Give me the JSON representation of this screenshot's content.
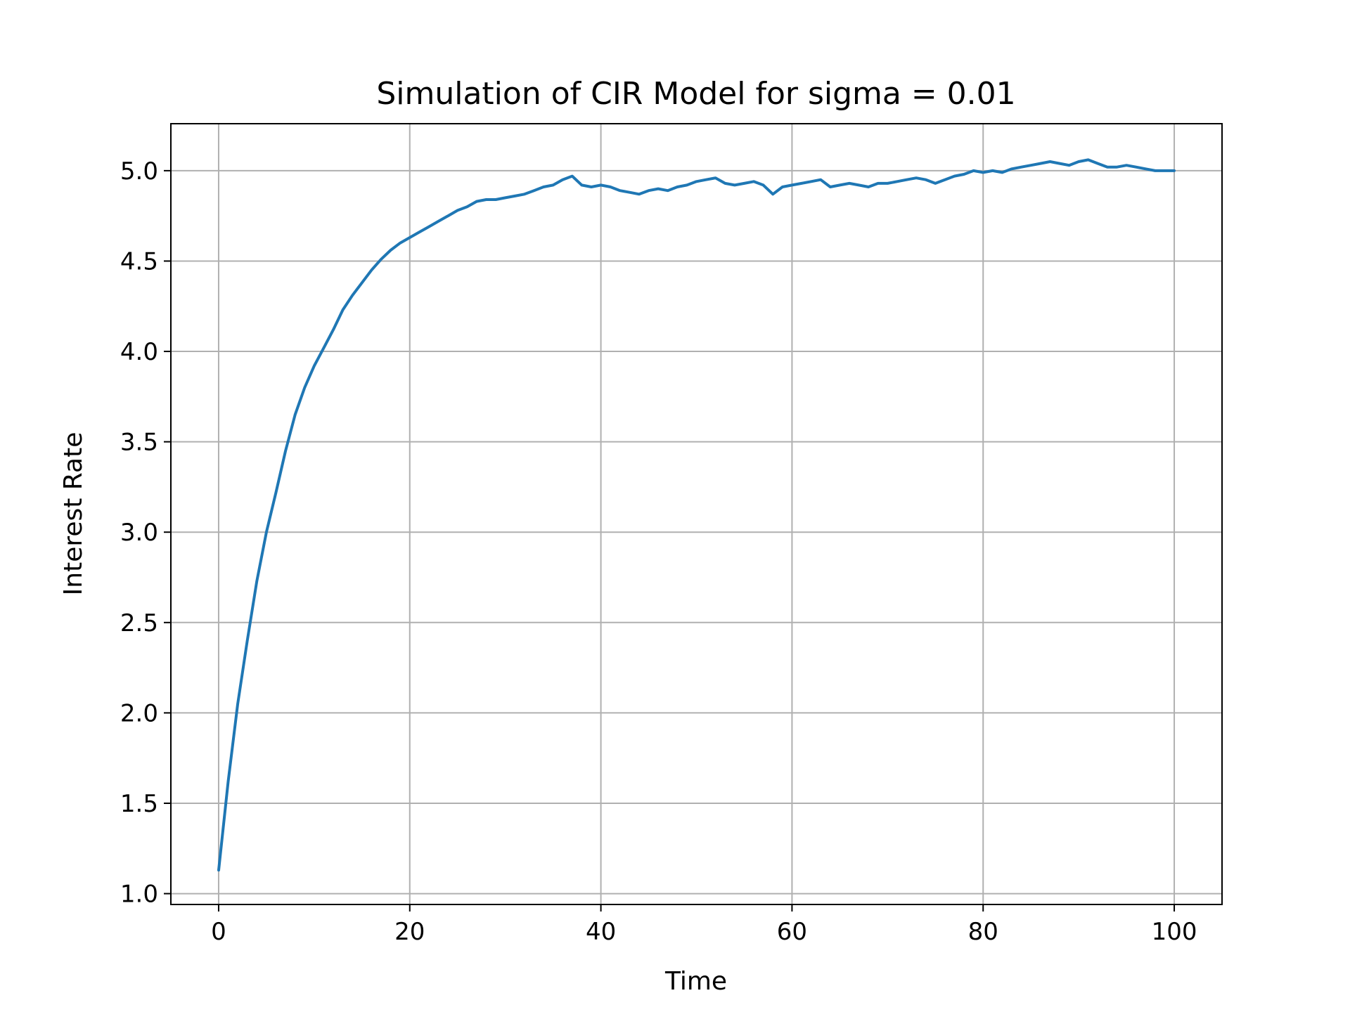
{
  "chart_data": {
    "type": "line",
    "title": "Simulation of CIR Model for sigma = 0.01",
    "xlabel": "Time",
    "ylabel": "Interest Rate",
    "xlim": [
      -5,
      105
    ],
    "ylim": [
      0.94,
      5.26
    ],
    "x_ticks": [
      0,
      20,
      40,
      60,
      80,
      100
    ],
    "y_ticks": [
      1.0,
      1.5,
      2.0,
      2.5,
      3.0,
      3.5,
      4.0,
      4.5,
      5.0
    ],
    "x_tick_labels": [
      "0",
      "20",
      "40",
      "60",
      "80",
      "100"
    ],
    "y_tick_labels": [
      "1.0",
      "1.5",
      "2.0",
      "2.5",
      "3.0",
      "3.5",
      "4.0",
      "4.5",
      "5.0"
    ],
    "grid": true,
    "line_color": "#1f77b4",
    "series": [
      {
        "x": [
          0,
          1,
          2,
          3,
          4,
          5,
          6,
          7,
          8,
          9,
          10,
          11,
          12,
          13,
          14,
          15,
          16,
          17,
          18,
          19,
          20,
          21,
          22,
          23,
          24,
          25,
          26,
          27,
          28,
          29,
          30,
          31,
          32,
          33,
          34,
          35,
          36,
          37,
          38,
          39,
          40,
          41,
          42,
          43,
          44,
          45,
          46,
          47,
          48,
          49,
          50,
          51,
          52,
          53,
          54,
          55,
          56,
          57,
          58,
          59,
          60,
          61,
          62,
          63,
          64,
          65,
          66,
          67,
          68,
          69,
          70,
          71,
          72,
          73,
          74,
          75,
          76,
          77,
          78,
          79,
          80,
          81,
          82,
          83,
          84,
          85,
          86,
          87,
          88,
          89,
          90,
          91,
          92,
          93,
          94,
          95,
          96,
          97,
          98,
          99,
          100
        ],
        "values": [
          1.13,
          1.62,
          2.05,
          2.4,
          2.73,
          3.0,
          3.22,
          3.45,
          3.65,
          3.8,
          3.92,
          4.02,
          4.12,
          4.23,
          4.31,
          4.38,
          4.45,
          4.51,
          4.56,
          4.6,
          4.63,
          4.66,
          4.69,
          4.72,
          4.75,
          4.78,
          4.8,
          4.83,
          4.84,
          4.84,
          4.85,
          4.86,
          4.87,
          4.89,
          4.91,
          4.92,
          4.95,
          4.97,
          4.92,
          4.91,
          4.92,
          4.91,
          4.89,
          4.88,
          4.87,
          4.89,
          4.9,
          4.89,
          4.91,
          4.92,
          4.94,
          4.95,
          4.96,
          4.93,
          4.92,
          4.93,
          4.94,
          4.92,
          4.87,
          4.91,
          4.92,
          4.93,
          4.94,
          4.95,
          4.91,
          4.92,
          4.93,
          4.92,
          4.91,
          4.93,
          4.93,
          4.94,
          4.95,
          4.96,
          4.95,
          4.93,
          4.95,
          4.97,
          4.98,
          5.0,
          4.99,
          5.0,
          4.99,
          5.01,
          5.02,
          5.03,
          5.04,
          5.05,
          5.04,
          5.03,
          5.05,
          5.06,
          5.04,
          5.02,
          5.02,
          5.03,
          5.02,
          5.01,
          5.0,
          5.0,
          5.0
        ]
      }
    ]
  }
}
